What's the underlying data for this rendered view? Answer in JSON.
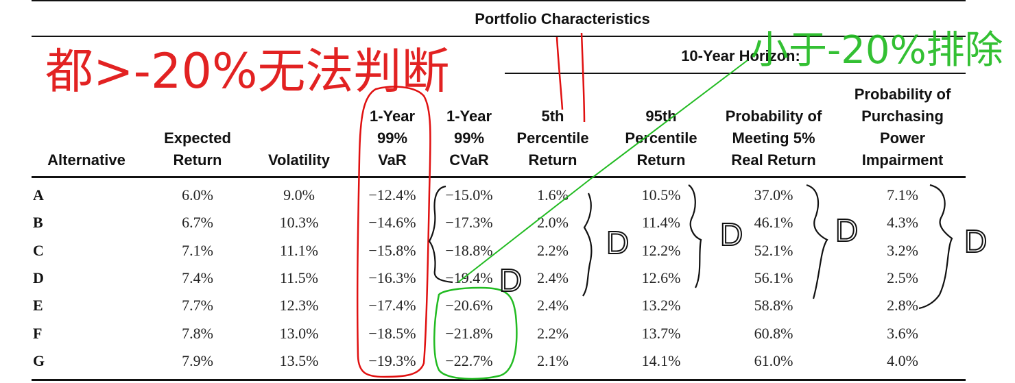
{
  "table": {
    "group_header": "Portfolio Characteristics",
    "subgroup_header": "10-Year Horizon:",
    "columns": [
      [
        "Alternative"
      ],
      [
        "Expected",
        "Return"
      ],
      [
        "Volatility"
      ],
      [
        "1-Year",
        "99%",
        "VaR"
      ],
      [
        "1-Year",
        "99%",
        "CVaR"
      ],
      [
        "5th",
        "Percentile",
        "Return"
      ],
      [
        "95th",
        "Percentile",
        "Return"
      ],
      [
        "Probability of",
        "Meeting 5%",
        "Real Return"
      ],
      [
        "Probability of",
        "Purchasing",
        "Power",
        "Impairment"
      ]
    ],
    "rows": [
      {
        "alt": "A",
        "cells": [
          "6.0%",
          "9.0%",
          "−12.4%",
          "−15.0%",
          "1.6%",
          "10.5%",
          "37.0%",
          "7.1%"
        ]
      },
      {
        "alt": "B",
        "cells": [
          "6.7%",
          "10.3%",
          "−14.6%",
          "−17.3%",
          "2.0%",
          "11.4%",
          "46.1%",
          "4.3%"
        ]
      },
      {
        "alt": "C",
        "cells": [
          "7.1%",
          "11.1%",
          "−15.8%",
          "−18.8%",
          "2.2%",
          "12.2%",
          "52.1%",
          "3.2%"
        ]
      },
      {
        "alt": "D",
        "cells": [
          "7.4%",
          "11.5%",
          "−16.3%",
          "−19.4%",
          "2.4%",
          "12.6%",
          "56.1%",
          "2.5%"
        ]
      },
      {
        "alt": "E",
        "cells": [
          "7.7%",
          "12.3%",
          "−17.4%",
          "−20.6%",
          "2.4%",
          "13.2%",
          "58.8%",
          "2.8%"
        ]
      },
      {
        "alt": "F",
        "cells": [
          "7.8%",
          "13.0%",
          "−18.5%",
          "−21.8%",
          "2.2%",
          "13.7%",
          "60.8%",
          "3.6%"
        ]
      },
      {
        "alt": "G",
        "cells": [
          "7.9%",
          "13.5%",
          "−19.3%",
          "−22.7%",
          "2.1%",
          "14.1%",
          "61.0%",
          "4.0%"
        ]
      }
    ]
  },
  "annotations": {
    "red_note": "都>-20%无法判断",
    "green_note": "小于-20%排除",
    "bracket_label": "D",
    "red_color": "#e01010",
    "green_color": "#22bb22",
    "black_color": "#111111"
  }
}
